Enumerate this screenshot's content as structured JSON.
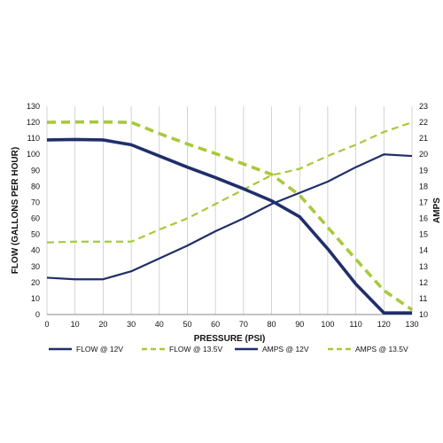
{
  "chart_data": {
    "type": "line",
    "xlabel": "PRESSURE (PSI)",
    "ylabel": "FLOW (GALLONS PER HOUR)",
    "y2label": "AMPS",
    "x": [
      0,
      10,
      20,
      30,
      40,
      50,
      60,
      70,
      80,
      90,
      100,
      110,
      120,
      130
    ],
    "xlim": [
      0,
      130
    ],
    "ylim": [
      0,
      130
    ],
    "y2lim": [
      10,
      23
    ],
    "x_ticks": [
      0,
      10,
      20,
      30,
      40,
      50,
      60,
      70,
      80,
      90,
      100,
      110,
      120,
      130
    ],
    "y_ticks": [
      0,
      10,
      20,
      30,
      40,
      50,
      60,
      70,
      80,
      90,
      100,
      110,
      120,
      130
    ],
    "y2_ticks": [
      10,
      11,
      12,
      13,
      14,
      15,
      16,
      17,
      18,
      19,
      20,
      21,
      22,
      23
    ],
    "grid": "vertical",
    "legend_position": "bottom",
    "series": [
      {
        "name": "FLOW @ 12V",
        "axis": "left",
        "style": "solid-thick",
        "color": "#1f2f6b",
        "values": [
          109,
          109.3,
          109,
          106,
          99,
          92,
          85.5,
          78.5,
          71,
          61,
          41,
          19,
          1,
          1
        ]
      },
      {
        "name": "FLOW @ 13.5V",
        "axis": "left",
        "style": "dashed-thick",
        "color": "#a8c93a",
        "values": [
          120,
          120.2,
          120.2,
          120,
          113,
          106.5,
          100.5,
          94,
          87.5,
          74.5,
          54.5,
          34.5,
          15,
          3
        ]
      },
      {
        "name": "AMPS @ 12V",
        "axis": "right",
        "style": "solid-thin",
        "color": "#1f2f6b",
        "values": [
          12.3,
          12.2,
          12.2,
          12.7,
          13.5,
          14.3,
          15.2,
          16.0,
          16.9,
          17.6,
          18.3,
          19.2,
          20.0,
          19.9
        ]
      },
      {
        "name": "AMPS @ 13.5V",
        "axis": "right",
        "style": "dashed-thin",
        "color": "#a8c93a",
        "values": [
          14.5,
          14.55,
          14.55,
          14.55,
          15.3,
          16.0,
          16.9,
          17.8,
          18.7,
          19.1,
          19.9,
          20.6,
          21.4,
          22.0
        ]
      }
    ]
  }
}
